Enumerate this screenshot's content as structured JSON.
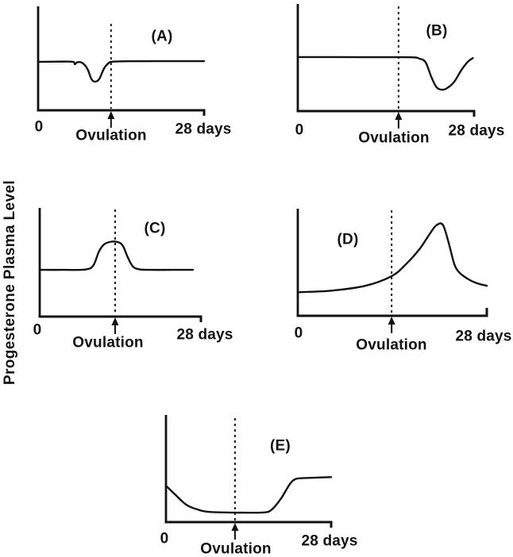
{
  "figure": {
    "ylabel": "Progesterone Plasma Level",
    "ink_color": "#121212",
    "background_color": "#ffffff"
  },
  "axis": {
    "x_start_label": "0",
    "x_end_label": "28 days",
    "ovulation_label": "Ovulation",
    "x_range_days": [
      0,
      28
    ],
    "y_value_scale": "relative 0-1 (y axis unlabeled)",
    "grid": false
  },
  "chart_data": [
    {
      "type": "line",
      "panel": "A",
      "title": "(A)",
      "x_range_days": [
        0,
        28
      ],
      "ylim": [
        0,
        1
      ],
      "ovulation_day": 12.3,
      "x_days": [
        0,
        3,
        5.8,
        6.2,
        6.6,
        7.4,
        8.3,
        9.0,
        9.6,
        10.3,
        11.1,
        11.9,
        12.6,
        15,
        21,
        28
      ],
      "y_level": [
        0.466,
        0.468,
        0.467,
        0.443,
        0.462,
        0.458,
        0.4,
        0.3,
        0.275,
        0.3,
        0.4,
        0.455,
        0.468,
        0.472,
        0.473,
        0.473
      ]
    },
    {
      "type": "line",
      "panel": "B",
      "title": "(B)",
      "x_range_days": [
        0,
        28
      ],
      "ylim": [
        0,
        1
      ],
      "ovulation_day": 16.0,
      "x_days": [
        0,
        6,
        12,
        18,
        19.3,
        20.3,
        21.2,
        22.0,
        22.8,
        23.6,
        24.8,
        26.0,
        27.0,
        27.8
      ],
      "y_level": [
        0.504,
        0.504,
        0.503,
        0.502,
        0.49,
        0.455,
        0.32,
        0.225,
        0.2,
        0.21,
        0.27,
        0.385,
        0.46,
        0.495
      ]
    },
    {
      "type": "line",
      "panel": "C",
      "title": "(C)",
      "x_range_days": [
        0,
        28
      ],
      "ylim": [
        0,
        1
      ],
      "ovulation_day": 13.1,
      "x_days": [
        0,
        4,
        7.9,
        9.3,
        10.3,
        11.2,
        12.3,
        13.4,
        14.4,
        15.3,
        16.2,
        17.3,
        19,
        23,
        26.6
      ],
      "y_level": [
        0.43,
        0.43,
        0.433,
        0.47,
        0.6,
        0.665,
        0.688,
        0.688,
        0.655,
        0.545,
        0.46,
        0.435,
        0.43,
        0.43,
        0.43
      ]
    },
    {
      "type": "line",
      "panel": "D",
      "title": "(D)",
      "x_range_days": [
        0,
        28
      ],
      "ylim": [
        0,
        1
      ],
      "ovulation_day": 13.9,
      "x_days": [
        0,
        5,
        10,
        13.9,
        16,
        18,
        19.5,
        20.5,
        21.5,
        22.4,
        23.2,
        24.0,
        25.3,
        26.5,
        28
      ],
      "y_level": [
        0.22,
        0.235,
        0.28,
        0.37,
        0.48,
        0.62,
        0.76,
        0.843,
        0.848,
        0.67,
        0.48,
        0.4,
        0.34,
        0.305,
        0.28
      ]
    },
    {
      "type": "line",
      "panel": "E",
      "title": "(E)",
      "x_range_days": [
        0,
        28
      ],
      "ylim": [
        0,
        1
      ],
      "ovulation_day": 11.7,
      "x_days": [
        0,
        1.5,
        3.5,
        5.5,
        7,
        10,
        13,
        16.7,
        18,
        19.5,
        21,
        21.9,
        23,
        25.5,
        28
      ],
      "y_level": [
        0.34,
        0.26,
        0.16,
        0.115,
        0.097,
        0.09,
        0.088,
        0.09,
        0.12,
        0.22,
        0.355,
        0.4,
        0.41,
        0.415,
        0.42
      ]
    }
  ]
}
